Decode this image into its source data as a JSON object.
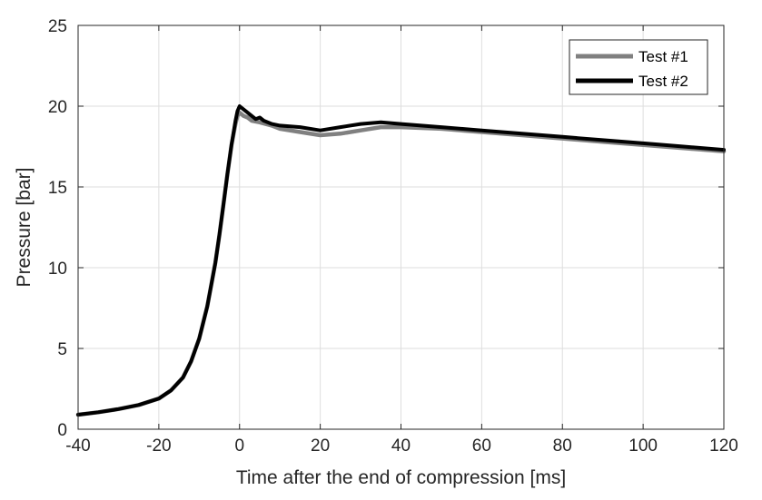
{
  "chart_data": {
    "type": "line",
    "xlabel": "Time after the end of compression [ms]",
    "ylabel": "Pressure [bar]",
    "xlim": [
      -40,
      120
    ],
    "ylim": [
      0,
      25
    ],
    "xticks": [
      -40,
      -20,
      0,
      20,
      40,
      60,
      80,
      100,
      120
    ],
    "yticks": [
      0,
      5,
      10,
      15,
      20,
      25
    ],
    "grid": true,
    "legend_position": "top-right",
    "series": [
      {
        "name": "Test #1",
        "color": "#808080",
        "x": [
          -40,
          -35,
          -30,
          -25,
          -20,
          -17,
          -14,
          -12,
          -10,
          -8,
          -6,
          -5,
          -4,
          -3,
          -2,
          -1,
          -0.5,
          0,
          1,
          2,
          3,
          5,
          8,
          10,
          15,
          20,
          25,
          30,
          35,
          40,
          50,
          60,
          70,
          80,
          90,
          100,
          110,
          120
        ],
        "y": [
          0.9,
          1.05,
          1.25,
          1.5,
          1.9,
          2.4,
          3.2,
          4.2,
          5.6,
          7.6,
          10.3,
          12.0,
          13.9,
          15.8,
          17.6,
          18.9,
          19.4,
          19.6,
          19.4,
          19.3,
          19.1,
          19.0,
          18.8,
          18.6,
          18.4,
          18.2,
          18.3,
          18.5,
          18.7,
          18.7,
          18.6,
          18.4,
          18.2,
          18.0,
          17.8,
          17.6,
          17.4,
          17.2
        ]
      },
      {
        "name": "Test #2",
        "color": "#000000",
        "x": [
          -40,
          -35,
          -30,
          -25,
          -20,
          -17,
          -14,
          -12,
          -10,
          -8,
          -6,
          -5,
          -4,
          -3,
          -2,
          -1,
          -0.5,
          0,
          1,
          2,
          3,
          4,
          5,
          6,
          8,
          10,
          15,
          20,
          25,
          30,
          35,
          40,
          50,
          60,
          70,
          80,
          90,
          100,
          110,
          120
        ],
        "y": [
          0.9,
          1.05,
          1.25,
          1.5,
          1.9,
          2.4,
          3.2,
          4.2,
          5.6,
          7.6,
          10.3,
          12.0,
          13.9,
          15.8,
          17.6,
          19.1,
          19.7,
          20.0,
          19.8,
          19.6,
          19.4,
          19.2,
          19.3,
          19.1,
          18.9,
          18.8,
          18.7,
          18.5,
          18.7,
          18.9,
          19.0,
          18.9,
          18.7,
          18.5,
          18.3,
          18.1,
          17.9,
          17.7,
          17.5,
          17.3
        ]
      }
    ]
  }
}
